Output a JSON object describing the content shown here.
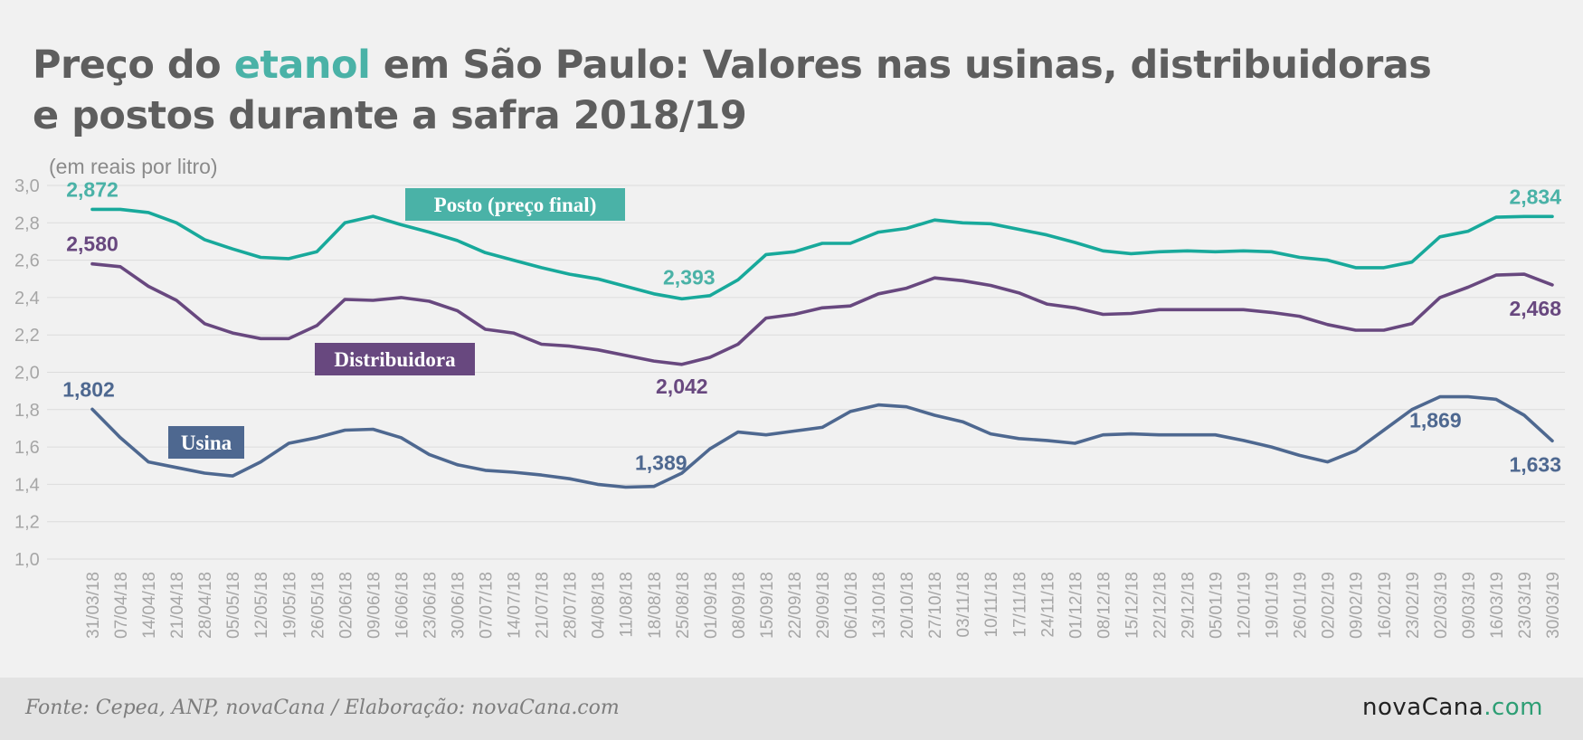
{
  "header": {
    "title_pre": "Preço do ",
    "title_accent": "etanol",
    "title_post": " em São Paulo: Valores nas usinas, distribuidoras e postos durante a safra 2018/19"
  },
  "footer": {
    "source": "Fonte: Cepea, ANP, novaCana / Elaboração: novaCana.com",
    "logo_main": "novaCana",
    "logo_suffix": ".com"
  },
  "colors": {
    "posto": "#18a99b",
    "posto_text": "#4ab2a7",
    "distribuidora": "#68487f",
    "usina": "#4e6890",
    "grid": "#dcdcdc",
    "tick": "#a6a6a6",
    "accent": "#4ab2a7"
  },
  "chart_data": {
    "type": "line",
    "unit_label": "(em reais por litro)",
    "ylim": [
      1.0,
      3.0
    ],
    "yticks": [
      "1,0",
      "1,2",
      "1,4",
      "1,6",
      "1,8",
      "2,0",
      "2,2",
      "2,4",
      "2,6",
      "2,8",
      "3,0"
    ],
    "grid": true,
    "x": [
      "31/03/18",
      "07/04/18",
      "14/04/18",
      "21/04/18",
      "28/04/18",
      "05/05/18",
      "12/05/18",
      "19/05/18",
      "26/05/18",
      "02/06/18",
      "09/06/18",
      "16/06/18",
      "23/06/18",
      "30/06/18",
      "07/07/18",
      "14/07/18",
      "21/07/18",
      "28/07/18",
      "04/08/18",
      "11/08/18",
      "18/08/18",
      "25/08/18",
      "01/09/18",
      "08/09/18",
      "15/09/18",
      "22/09/18",
      "29/09/18",
      "06/10/18",
      "13/10/18",
      "20/10/18",
      "27/10/18",
      "03/11/18",
      "10/11/18",
      "17/11/18",
      "24/11/18",
      "01/12/18",
      "08/12/18",
      "15/12/18",
      "22/12/18",
      "29/12/18",
      "05/01/19",
      "12/01/19",
      "19/01/19",
      "26/01/19",
      "02/02/19",
      "09/02/19",
      "16/02/19",
      "23/02/19",
      "02/03/19",
      "09/03/19",
      "16/03/19",
      "23/03/19",
      "30/03/19"
    ],
    "series": [
      {
        "name": "Posto (preço final)",
        "key": "posto",
        "values": [
          2.872,
          2.872,
          2.855,
          2.8,
          2.71,
          2.66,
          2.615,
          2.608,
          2.645,
          2.8,
          2.835,
          2.79,
          2.75,
          2.705,
          2.64,
          2.6,
          2.56,
          2.525,
          2.5,
          2.46,
          2.42,
          2.393,
          2.41,
          2.495,
          2.63,
          2.645,
          2.69,
          2.69,
          2.75,
          2.77,
          2.815,
          2.8,
          2.795,
          2.765,
          2.735,
          2.695,
          2.65,
          2.635,
          2.645,
          2.65,
          2.645,
          2.65,
          2.645,
          2.615,
          2.6,
          2.56,
          2.56,
          2.59,
          2.725,
          2.755,
          2.83,
          2.834,
          2.834
        ]
      },
      {
        "name": "Distribuidora",
        "key": "distribuidora",
        "values": [
          2.58,
          2.565,
          2.46,
          2.385,
          2.26,
          2.21,
          2.18,
          2.18,
          2.25,
          2.39,
          2.385,
          2.4,
          2.38,
          2.33,
          2.23,
          2.21,
          2.15,
          2.14,
          2.12,
          2.09,
          2.06,
          2.042,
          2.08,
          2.15,
          2.29,
          2.31,
          2.345,
          2.355,
          2.42,
          2.45,
          2.505,
          2.49,
          2.465,
          2.425,
          2.365,
          2.345,
          2.31,
          2.315,
          2.335,
          2.335,
          2.335,
          2.335,
          2.32,
          2.3,
          2.255,
          2.225,
          2.225,
          2.26,
          2.4,
          2.455,
          2.52,
          2.525,
          2.468
        ]
      },
      {
        "name": "Usina",
        "key": "usina",
        "values": [
          1.802,
          1.65,
          1.52,
          1.49,
          1.46,
          1.445,
          1.52,
          1.62,
          1.65,
          1.69,
          1.695,
          1.65,
          1.56,
          1.505,
          1.475,
          1.465,
          1.45,
          1.43,
          1.4,
          1.385,
          1.389,
          1.46,
          1.59,
          1.68,
          1.665,
          1.685,
          1.705,
          1.79,
          1.825,
          1.815,
          1.77,
          1.735,
          1.67,
          1.645,
          1.635,
          1.62,
          1.665,
          1.67,
          1.665,
          1.665,
          1.665,
          1.635,
          1.6,
          1.555,
          1.52,
          1.58,
          1.69,
          1.8,
          1.869,
          1.869,
          1.855,
          1.77,
          1.633
        ]
      }
    ],
    "annotations": [
      {
        "series": "posto",
        "index": 0,
        "text": "2,872"
      },
      {
        "series": "posto",
        "index": 21,
        "text": "2,393"
      },
      {
        "series": "posto",
        "index": 52,
        "text": "2,834"
      },
      {
        "series": "distribuidora",
        "index": 0,
        "text": "2,580"
      },
      {
        "series": "distribuidora",
        "index": 21,
        "text": "2,042"
      },
      {
        "series": "distribuidora",
        "index": 52,
        "text": "2,468"
      },
      {
        "series": "usina",
        "index": 0,
        "text": "1,802"
      },
      {
        "series": "usina",
        "index": 20,
        "text": "1,389"
      },
      {
        "series": "usina",
        "index": 48,
        "text": "1,869"
      },
      {
        "series": "usina",
        "index": 52,
        "text": "1,633"
      }
    ],
    "series_labels": [
      {
        "series": "posto",
        "text": "Posto (preço final)"
      },
      {
        "series": "distribuidora",
        "text": "Distribuidora"
      },
      {
        "series": "usina",
        "text": "Usina"
      }
    ]
  }
}
